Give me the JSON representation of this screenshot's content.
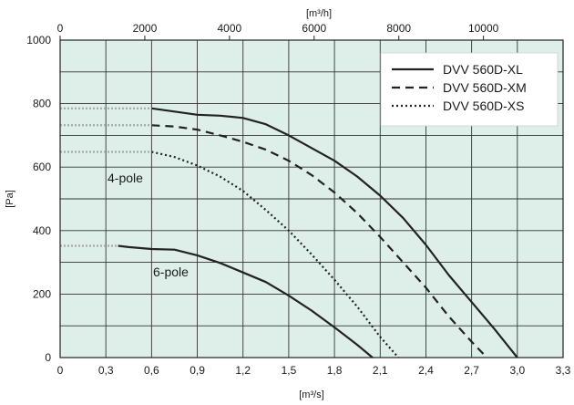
{
  "chart_data": {
    "type": "line",
    "xlabel": "[m³/s]",
    "ylabel": "[Pa]",
    "x2label": "[m³/h]",
    "xlim": [
      0,
      3.3
    ],
    "ylim": [
      0,
      1000
    ],
    "x2lim": [
      0,
      11880
    ],
    "xticks": [
      "0",
      "0,3",
      "0,6",
      "0,9",
      "1,2",
      "1,5",
      "1,8",
      "2,1",
      "2,4",
      "2,7",
      "3,0",
      "3,3"
    ],
    "xtick_values": [
      0,
      0.3,
      0.6,
      0.9,
      1.2,
      1.5,
      1.8,
      2.1,
      2.4,
      2.7,
      3.0,
      3.3
    ],
    "yticks": [
      "0",
      "200",
      "400",
      "600",
      "800",
      "1000"
    ],
    "ytick_values": [
      0,
      200,
      400,
      600,
      800,
      1000
    ],
    "x2ticks": [
      "0",
      "2000",
      "4000",
      "6000",
      "8000",
      "10000"
    ],
    "x2tick_values": [
      0,
      2000,
      4000,
      6000,
      8000,
      10000
    ],
    "grid": true,
    "background": "#deefea",
    "legend_position": "top-right",
    "series": [
      {
        "name": "DVV 560D-XL",
        "style": "solid",
        "x": [
          0.6,
          0.75,
          0.9,
          1.05,
          1.2,
          1.35,
          1.5,
          1.65,
          1.8,
          1.95,
          2.1,
          2.25,
          2.4,
          2.55,
          2.7,
          2.85,
          3.0
        ],
        "y": [
          785,
          775,
          765,
          762,
          755,
          735,
          700,
          660,
          620,
          570,
          510,
          440,
          355,
          260,
          175,
          90,
          0
        ],
        "reference_y": 785
      },
      {
        "name": "DVV 560D-XM",
        "style": "dashed",
        "x": [
          0.6,
          0.75,
          0.9,
          1.05,
          1.2,
          1.35,
          1.5,
          1.65,
          1.8,
          1.95,
          2.1,
          2.25,
          2.4,
          2.55,
          2.7,
          2.8
        ],
        "y": [
          732,
          728,
          718,
          700,
          680,
          655,
          620,
          575,
          520,
          455,
          380,
          300,
          220,
          130,
          50,
          0
        ],
        "reference_y": 732
      },
      {
        "name": "DVV 560D-XS",
        "style": "dotted",
        "x": [
          0.6,
          0.75,
          0.9,
          1.05,
          1.2,
          1.35,
          1.5,
          1.65,
          1.8,
          1.95,
          2.1,
          2.22
        ],
        "y": [
          648,
          632,
          605,
          570,
          525,
          465,
          400,
          325,
          245,
          160,
          65,
          0
        ],
        "reference_y": 648
      },
      {
        "name": "6-pole",
        "style": "solid",
        "x": [
          0.38,
          0.45,
          0.6,
          0.75,
          0.9,
          1.05,
          1.2,
          1.35,
          1.5,
          1.65,
          1.8,
          1.95,
          2.05
        ],
        "y": [
          352,
          348,
          342,
          340,
          322,
          298,
          268,
          238,
          195,
          148,
          95,
          40,
          0
        ],
        "reference_y": 352
      }
    ],
    "annotations": [
      "4-pole",
      "6-pole"
    ]
  }
}
